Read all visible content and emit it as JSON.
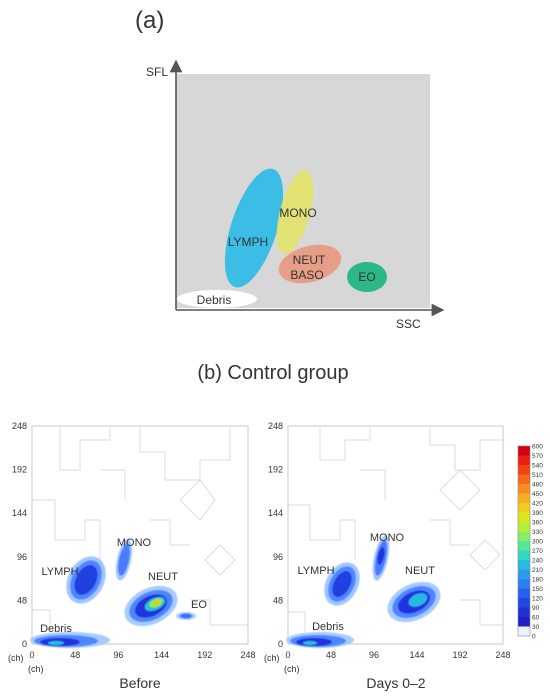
{
  "panel_a": {
    "label": "(a)",
    "y_axis": "SFL",
    "x_axis": "SSC",
    "populations": [
      {
        "name": "LYMPH",
        "color": "#3bbde6"
      },
      {
        "name": "MONO",
        "color": "#e2e36a"
      },
      {
        "name": "NEUT",
        "color": "#e79a7f"
      },
      {
        "name": "BASO",
        "color": "#e79a7f"
      },
      {
        "name": "EO",
        "color": "#2cb886"
      },
      {
        "name": "Debris",
        "color": "#ffffff"
      }
    ]
  },
  "panel_b": {
    "title": "(b) Control group",
    "axis_unit": "(ch)",
    "x_ticks": [
      "0",
      "48",
      "96",
      "144",
      "192",
      "248"
    ],
    "y_ticks": [
      "0",
      "48",
      "96",
      "144",
      "192",
      "248"
    ],
    "plots": [
      {
        "caption": "Before",
        "labels": [
          "MONO",
          "LYMPH",
          "NEUT",
          "EO",
          "Debris"
        ]
      },
      {
        "caption": "Days 0–2",
        "labels": [
          "MONO",
          "LYMPH",
          "NEUT",
          "Debris"
        ]
      }
    ],
    "colorbar": {
      "ticks": [
        "600",
        "570",
        "540",
        "510",
        "480",
        "450",
        "420",
        "390",
        "360",
        "330",
        "300",
        "270",
        "240",
        "210",
        "180",
        "150",
        "120",
        "90",
        "60",
        "30",
        "0"
      ],
      "colors": [
        "#d6000f",
        "#e8200f",
        "#f24413",
        "#f8691a",
        "#f98d1f",
        "#f7b021",
        "#eecf1e",
        "#d9e81c",
        "#b6f036",
        "#86f065",
        "#58e895",
        "#34d8c0",
        "#28bde0",
        "#2b9cf0",
        "#2a7ff2",
        "#2561ee",
        "#2047e4",
        "#1e33d6",
        "#2222c4",
        "#eef2fb"
      ]
    }
  }
}
